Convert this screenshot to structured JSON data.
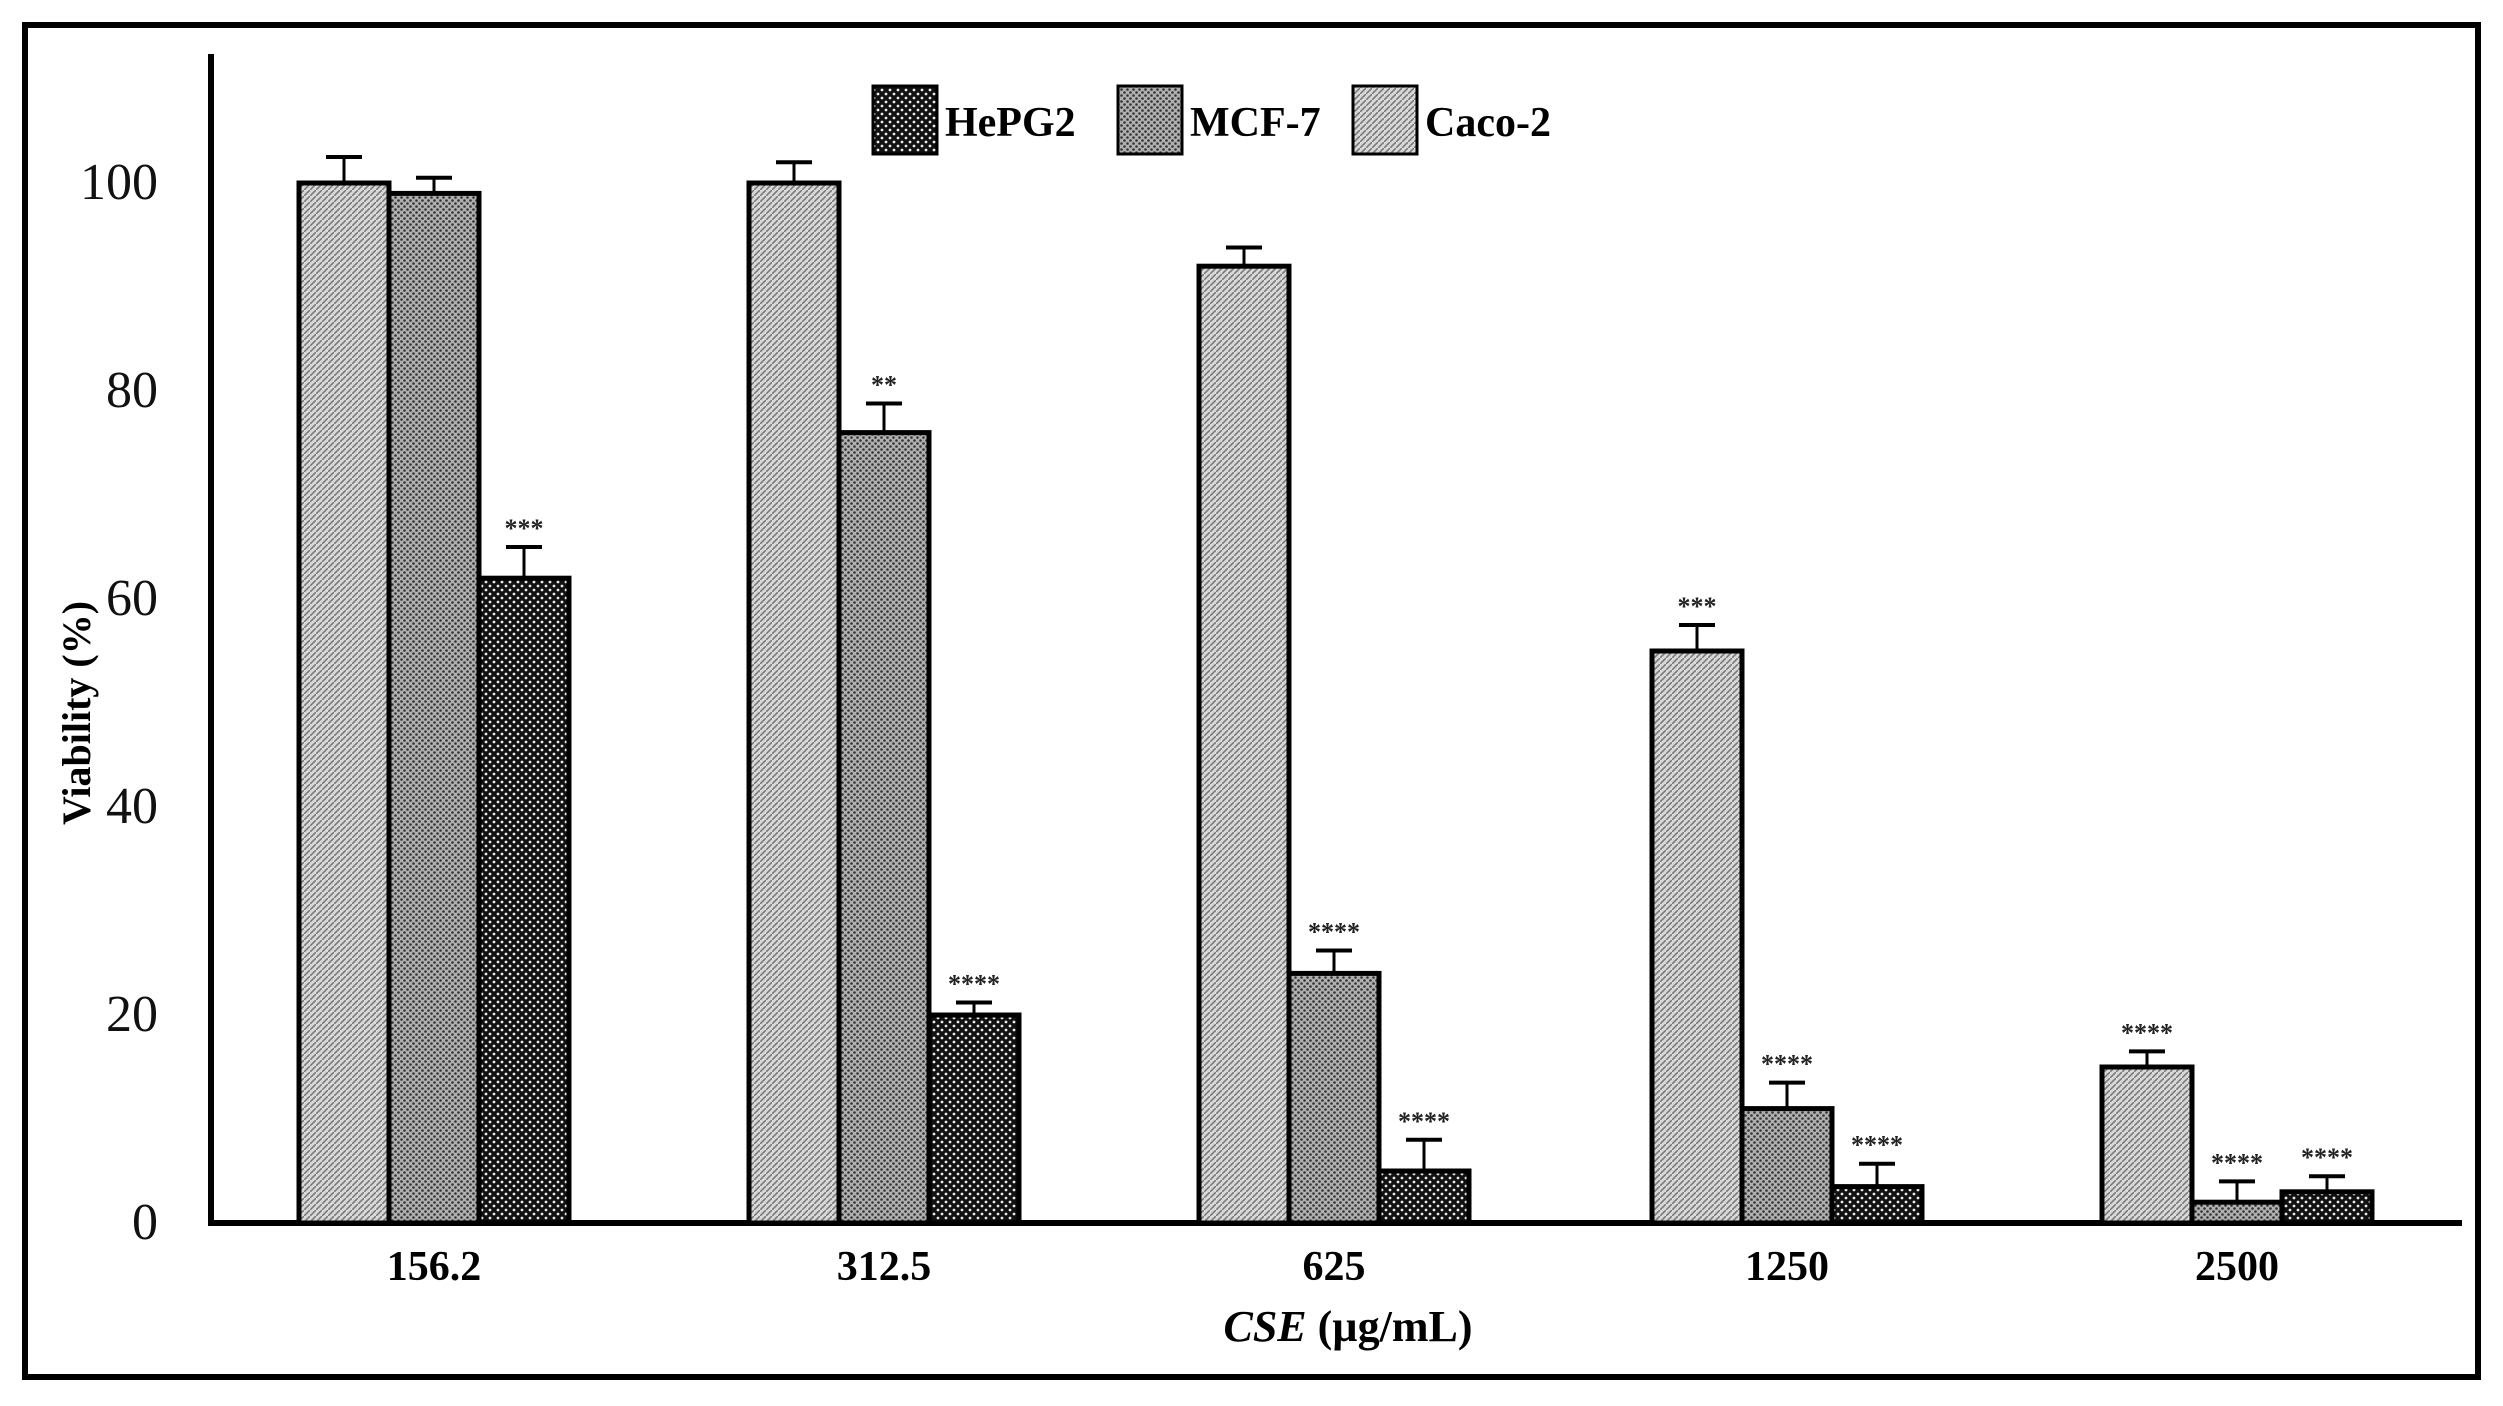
{
  "chart_data": {
    "type": "bar",
    "title": "",
    "xlabel_italic": "CSE",
    "xlabel_rest": " (µg/mL)",
    "ylabel": "Viability  (%)",
    "ylim": [
      0,
      110
    ],
    "yticks": [
      0,
      20,
      40,
      60,
      80,
      100
    ],
    "categories": [
      "156.2",
      "312.5",
      "625",
      "1250",
      "2500"
    ],
    "series": [
      {
        "name": "Caco-2",
        "values": [
          100,
          100,
          92,
          55,
          15
        ],
        "errors": [
          2.5,
          2,
          1.8,
          2.5,
          1.5
        ],
        "sig": [
          "",
          "",
          "",
          "***",
          "****"
        ]
      },
      {
        "name": "MCF-7",
        "values": [
          99,
          76,
          24,
          11,
          2
        ],
        "errors": [
          1.5,
          2.8,
          2.2,
          2.5,
          2
        ],
        "sig": [
          "",
          "**",
          "****",
          "****",
          "****"
        ]
      },
      {
        "name": "HePG2",
        "values": [
          62,
          20,
          5,
          3.5,
          3
        ],
        "errors": [
          3,
          1.2,
          3,
          2.2,
          1.5
        ],
        "sig": [
          "***",
          "****",
          "****",
          "****",
          "****"
        ]
      }
    ],
    "legend": [
      "HePG2",
      "MCF-7",
      "Caco-2"
    ],
    "legend_position": "top-center"
  },
  "colors": {
    "caco2_bg": "#cfcfcf",
    "mcf7_bg": "#9a9a9a",
    "hepg2_bg": "#1a1a1a",
    "axis": "#000000"
  }
}
